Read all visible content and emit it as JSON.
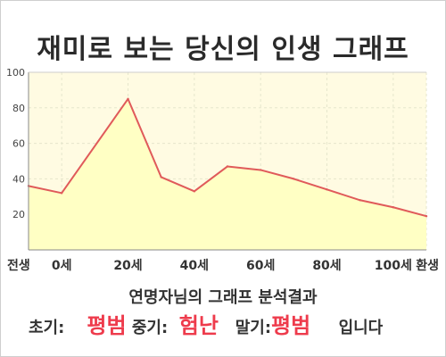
{
  "title": "재미로 보는 당신의 인생 그래프",
  "chart_data": {
    "type": "area",
    "x": [
      -10,
      0,
      20,
      30,
      40,
      50,
      60,
      70,
      80,
      90,
      100,
      110
    ],
    "values": [
      36,
      32,
      85,
      41,
      33,
      47,
      45,
      40,
      34,
      28,
      24,
      19
    ],
    "ylim": [
      0,
      100
    ],
    "y_ticks": [
      20,
      40,
      60,
      80,
      100
    ],
    "x_ticks": [
      {
        "x": -10,
        "label": "전생"
      },
      {
        "x": 0,
        "label": "0세"
      },
      {
        "x": 20,
        "label": "20세"
      },
      {
        "x": 40,
        "label": "40세"
      },
      {
        "x": 60,
        "label": "60세"
      },
      {
        "x": 80,
        "label": "80세"
      },
      {
        "x": 100,
        "label": "100세"
      },
      {
        "x": 110,
        "label": "환생"
      }
    ],
    "grid": true,
    "colors": {
      "line": "#e05a5a",
      "fill": "#ffffc4",
      "plot_bg": "#fffbe2",
      "grid": "#e6e6cc"
    }
  },
  "summary": {
    "line1": "연명자님의 그래프 분석결과",
    "early_label": "초기:",
    "early_value": "평범",
    "middle_label": "중기:",
    "middle_value": "험난",
    "late_label": "말기:",
    "late_value": "평범",
    "ending": "입니다"
  }
}
